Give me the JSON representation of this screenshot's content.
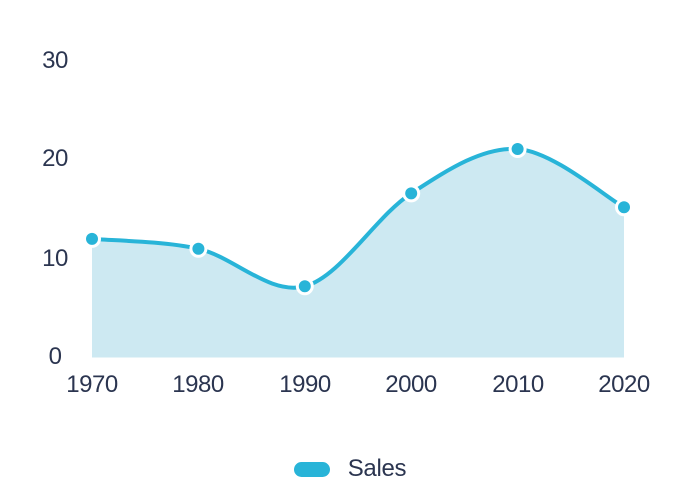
{
  "chart_data": {
    "type": "area",
    "title": "",
    "categories": [
      "1970",
      "1980",
      "1990",
      "2000",
      "2010",
      "2020"
    ],
    "series": [
      {
        "name": "Sales",
        "values": [
          12,
          11,
          7.2,
          16.6,
          21.1,
          15.2
        ]
      }
    ],
    "yticks": [
      "30",
      "20",
      "10",
      "0"
    ],
    "ylim": [
      0,
      30
    ],
    "xlabel": "",
    "ylabel": "",
    "grid": false,
    "curve": "smooth",
    "legend_position": "bottom"
  },
  "colors": {
    "accent": "#28b4d8",
    "area_fill": "#cde9f2",
    "text": "#2b3550",
    "marker_stroke": "#ffffff",
    "background": "#ffffff"
  }
}
